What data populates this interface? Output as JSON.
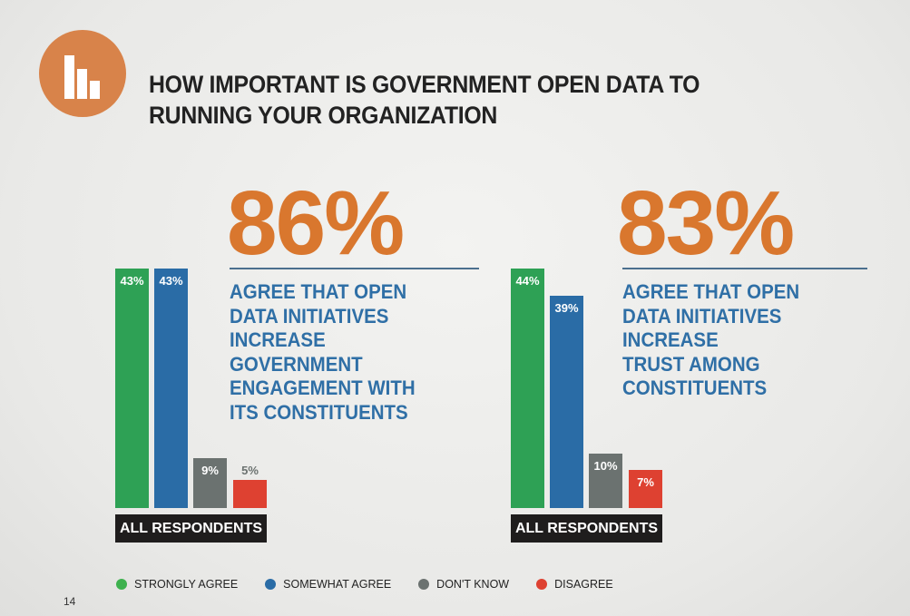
{
  "title_line1": "HOW IMPORTANT IS GOVERNMENT OPEN DATA TO",
  "title_line2": "RUNNING YOUR ORGANIZATION",
  "logo_icon": "bar-chart-icon",
  "page_number": "14",
  "colors": {
    "strongly_agree": "#2ea155",
    "somewhat_agree": "#2a6ca6",
    "dont_know": "#6b7270",
    "disagree": "#de4131",
    "accent": "#d9772e"
  },
  "legend": [
    {
      "label": "STRONGLY AGREE",
      "color": "#3db14e"
    },
    {
      "label": "SOMEWHAT AGREE",
      "color": "#2a6ca6"
    },
    {
      "label": "DON'T KNOW",
      "color": "#6b7270"
    },
    {
      "label": "DISAGREE",
      "color": "#de4131"
    }
  ],
  "chart_data": [
    {
      "type": "bar",
      "title": "ALL RESPONDENTS",
      "headline": "86%",
      "description_lines": [
        "AGREE THAT OPEN",
        "DATA INITIATIVES",
        "INCREASE",
        "GOVERNMENT",
        "ENGAGEMENT WITH",
        "ITS CONSTITUENTS"
      ],
      "categories": [
        "STRONGLY AGREE",
        "SOMEWHAT AGREE",
        "DON'T KNOW",
        "DISAGREE"
      ],
      "values": [
        43,
        43,
        9,
        5
      ],
      "labels": [
        "43%",
        "43%",
        "9%",
        "5%"
      ],
      "ylim": [
        0,
        43
      ]
    },
    {
      "type": "bar",
      "title": "ALL RESPONDENTS",
      "headline": "83%",
      "description_lines": [
        "AGREE THAT OPEN",
        "DATA INITIATIVES",
        "INCREASE",
        "TRUST AMONG",
        "CONSTITUENTS"
      ],
      "categories": [
        "STRONGLY AGREE",
        "SOMEWHAT AGREE",
        "DON'T KNOW",
        "DISAGREE"
      ],
      "values": [
        44,
        39,
        10,
        7
      ],
      "labels": [
        "44%",
        "39%",
        "10%",
        "7%"
      ],
      "ylim": [
        0,
        44
      ]
    }
  ]
}
